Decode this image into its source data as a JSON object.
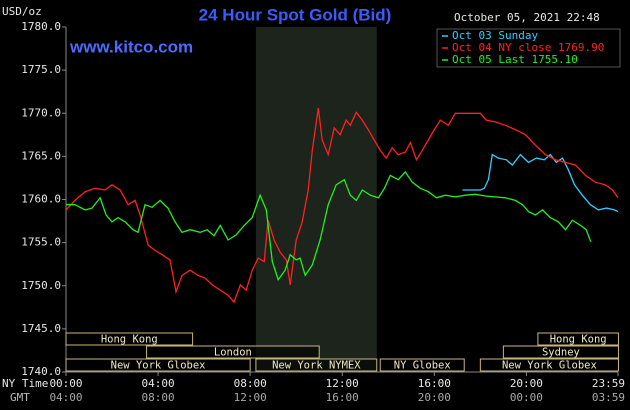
{
  "chart_data": {
    "type": "line",
    "title": "24 Hour Spot Gold (Bid)",
    "site": "www.kitco.com",
    "timestamp": "October 05, 2021 22:48",
    "y_label": "USD/oz",
    "x_label": "NY Time",
    "x2_label": "GMT",
    "xlim": [
      0,
      23.98
    ],
    "ylim": [
      1740,
      1780
    ],
    "xticks": [
      {
        "value": 0,
        "label": "00:00"
      },
      {
        "value": 4,
        "label": "04:00"
      },
      {
        "value": 8,
        "label": "08:00"
      },
      {
        "value": 12,
        "label": "12:00"
      },
      {
        "value": 16,
        "label": "16:00"
      },
      {
        "value": 20,
        "label": "20:00"
      },
      {
        "value": 23.98,
        "label": "23:59"
      }
    ],
    "gmt_labels": [
      "04:00",
      "08:00",
      "12:00",
      "16:00",
      "20:00",
      "00:00",
      "03:59"
    ],
    "yticks": [
      {
        "value": 1740,
        "label": "1740.0"
      },
      {
        "value": 1745,
        "label": "1745.0"
      },
      {
        "value": 1750,
        "label": "1750.0"
      },
      {
        "value": 1755,
        "label": "1755.0"
      },
      {
        "value": 1760,
        "label": "1760.0"
      },
      {
        "value": 1765,
        "label": "1765.0"
      },
      {
        "value": 1770,
        "label": "1770.0"
      },
      {
        "value": 1775,
        "label": "1775.0"
      },
      {
        "value": 1780,
        "label": "1780.0"
      }
    ],
    "series": [
      {
        "name": "Oct 03 Sunday",
        "color": "#33ccff",
        "x": [
          17.22,
          17.57,
          18.0,
          18.17,
          18.35,
          18.52,
          18.78,
          19.13,
          19.39,
          19.74,
          20.09,
          20.43,
          20.78,
          21.04,
          21.3,
          21.57,
          21.83,
          22.09,
          22.43,
          22.78,
          23.13,
          23.48,
          23.83,
          23.98
        ],
        "values": [
          1761.1,
          1761.1,
          1761.1,
          1761.3,
          1762.3,
          1765.2,
          1764.8,
          1764.6,
          1764.0,
          1765.2,
          1764.3,
          1764.8,
          1764.6,
          1765.2,
          1764.3,
          1764.8,
          1763.4,
          1761.7,
          1760.5,
          1759.4,
          1758.8,
          1759.0,
          1758.8,
          1758.6
        ]
      },
      {
        "name": "Oct 04 NY close 1769.90",
        "color": "#ff2020",
        "x": [
          0,
          0.39,
          0.83,
          1.26,
          1.7,
          2.0,
          2.35,
          2.7,
          3.0,
          3.22,
          3.57,
          3.87,
          4.17,
          4.52,
          4.78,
          5.04,
          5.39,
          5.74,
          6.04,
          6.35,
          6.7,
          7.04,
          7.3,
          7.57,
          7.83,
          8.09,
          8.35,
          8.61,
          8.78,
          9.04,
          9.3,
          9.57,
          9.74,
          10.0,
          10.26,
          10.52,
          10.7,
          10.96,
          11.13,
          11.39,
          11.65,
          11.91,
          12.17,
          12.35,
          12.61,
          12.87,
          13.13,
          13.39,
          13.65,
          13.91,
          14.17,
          14.43,
          14.74,
          14.96,
          15.22,
          15.48,
          15.74,
          16.0,
          16.26,
          16.61,
          16.91,
          17.35,
          18.0,
          18.26,
          18.65,
          19.09,
          19.52,
          19.96,
          20.39,
          20.83,
          21.26,
          21.7,
          22.13,
          22.57,
          23.0,
          23.43,
          23.74,
          23.98
        ],
        "values": [
          1758.8,
          1759.9,
          1760.9,
          1761.3,
          1761.1,
          1761.7,
          1761.1,
          1759.4,
          1759.9,
          1758.2,
          1754.7,
          1754.1,
          1753.6,
          1753.0,
          1749.3,
          1751.2,
          1751.8,
          1751.2,
          1750.9,
          1750.1,
          1749.5,
          1748.9,
          1748.1,
          1750.1,
          1749.5,
          1751.8,
          1753.2,
          1752.8,
          1757.6,
          1755.3,
          1753.9,
          1753.0,
          1750.1,
          1755.3,
          1757.4,
          1761.1,
          1765.7,
          1770.6,
          1766.9,
          1765.2,
          1768.3,
          1767.5,
          1769.2,
          1768.6,
          1770.1,
          1769.2,
          1768.1,
          1766.9,
          1765.7,
          1764.8,
          1766.0,
          1765.2,
          1765.5,
          1766.6,
          1764.6,
          1765.7,
          1766.9,
          1768.1,
          1769.2,
          1768.6,
          1770.0,
          1770.0,
          1770.0,
          1769.2,
          1769.0,
          1768.6,
          1768.1,
          1767.5,
          1766.3,
          1765.2,
          1764.6,
          1764.3,
          1764.0,
          1762.8,
          1762.0,
          1761.7,
          1761.1,
          1760.2
        ]
      },
      {
        "name": "Oct 05 Last 1755.10",
        "color": "#22ee22",
        "x": [
          0,
          0.39,
          0.83,
          1.13,
          1.48,
          1.74,
          2.0,
          2.26,
          2.57,
          2.91,
          3.13,
          3.43,
          3.74,
          4.09,
          4.43,
          4.74,
          5.04,
          5.39,
          5.83,
          6.13,
          6.43,
          6.7,
          7.04,
          7.39,
          7.74,
          8.09,
          8.43,
          8.7,
          8.96,
          9.22,
          9.52,
          9.74,
          10.0,
          10.17,
          10.39,
          10.7,
          11.04,
          11.39,
          11.74,
          12.09,
          12.35,
          12.61,
          12.87,
          13.22,
          13.57,
          13.83,
          14.09,
          14.43,
          14.74,
          15.04,
          15.39,
          15.74,
          16.09,
          16.48,
          16.91,
          17.35,
          17.78,
          18.22,
          18.65,
          19.09,
          19.52,
          19.83,
          20.09,
          20.39,
          20.7,
          21.04,
          21.39,
          21.7,
          22.0,
          22.35,
          22.6,
          22.8
        ],
        "values": [
          1759.4,
          1759.4,
          1758.8,
          1759.0,
          1760.2,
          1758.2,
          1757.4,
          1757.9,
          1757.4,
          1756.5,
          1756.2,
          1759.4,
          1759.1,
          1759.9,
          1759.0,
          1757.4,
          1756.2,
          1756.5,
          1756.2,
          1756.5,
          1755.8,
          1757.0,
          1755.3,
          1755.9,
          1757.0,
          1757.9,
          1760.5,
          1758.8,
          1752.8,
          1750.7,
          1751.8,
          1753.6,
          1753.0,
          1753.2,
          1751.2,
          1752.4,
          1755.3,
          1759.4,
          1761.7,
          1762.3,
          1760.5,
          1759.9,
          1761.1,
          1760.5,
          1760.2,
          1761.3,
          1762.8,
          1762.3,
          1763.2,
          1762.0,
          1761.3,
          1760.9,
          1760.2,
          1760.5,
          1760.3,
          1760.5,
          1760.6,
          1760.4,
          1760.3,
          1760.2,
          1759.9,
          1759.4,
          1758.6,
          1758.2,
          1758.8,
          1757.9,
          1757.4,
          1756.5,
          1757.6,
          1757.0,
          1756.5,
          1755.1
        ]
      }
    ],
    "sessions": [
      [
        {
          "label": "Hong Kong",
          "start": 0,
          "end": 5.5
        },
        {
          "label": "Hong Kong",
          "start": 20.5,
          "end": 24
        }
      ],
      [
        {
          "label": "London",
          "start": 3.5,
          "end": 11
        },
        {
          "label": "Sydney",
          "start": 19,
          "end": 24
        }
      ],
      [
        {
          "label": "New York Globex",
          "start": 0,
          "end": 8
        },
        {
          "label": "New York NYMEX",
          "start": 8.25,
          "end": 13.5,
          "shaded": true
        },
        {
          "label": "NY Globex",
          "start": 13.65,
          "end": 17.3
        },
        {
          "label": "New York Globex",
          "start": 18,
          "end": 24
        }
      ]
    ],
    "grid": false
  }
}
